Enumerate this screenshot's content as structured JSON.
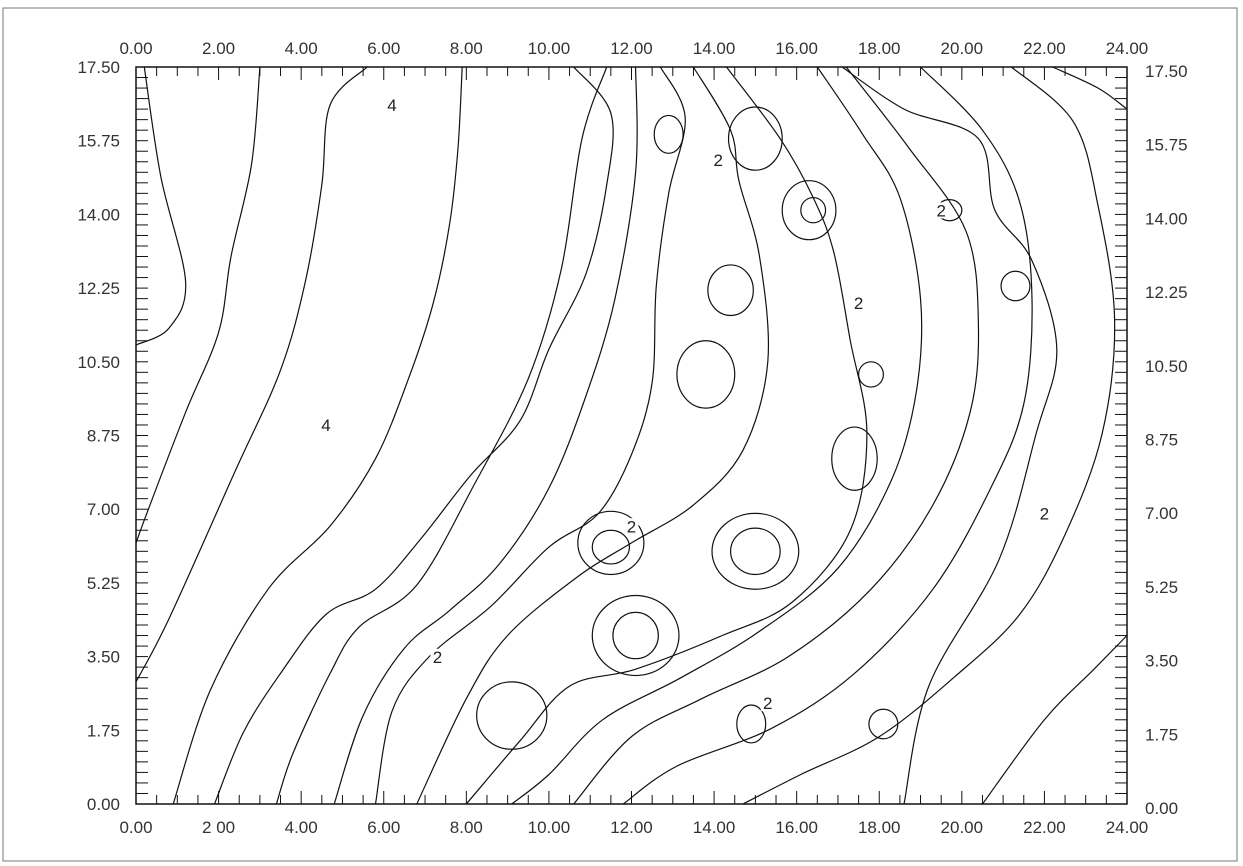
{
  "chart_data": {
    "type": "contour",
    "title": "",
    "xlabel": "",
    "ylabel": "",
    "xlim": [
      0,
      24
    ],
    "ylim": [
      0,
      17.5
    ],
    "x_ticks": [
      "0.00",
      "2.00",
      "4.00",
      "6.00",
      "8.00",
      "10.00",
      "12.00",
      "14.00",
      "16.00",
      "18.00",
      "20.00",
      "22.00",
      "24.00"
    ],
    "x_ticks_bottom": [
      "0.00",
      "2 00",
      "4.00",
      "6.00",
      "8.00",
      "10.00",
      "12.00",
      "14.00",
      "16.00",
      "18.00",
      "20.00",
      "22.00",
      "24.00"
    ],
    "y_ticks": [
      "0.00",
      "1.75",
      "3.50",
      "5.25",
      "7.00",
      "8.75",
      "10.50",
      "12.25",
      "14.00",
      "15.75",
      "17.50"
    ],
    "minor_tick_step": 0.5,
    "grid": false,
    "contour_labels": [
      {
        "text": "4",
        "x": 6.2,
        "y": 16.5
      },
      {
        "text": "4",
        "x": 4.6,
        "y": 8.9
      },
      {
        "text": "2",
        "x": 14.1,
        "y": 15.2
      },
      {
        "text": "2",
        "x": 17.5,
        "y": 11.8
      },
      {
        "text": "2",
        "x": 19.5,
        "y": 14.0
      },
      {
        "text": "2",
        "x": 12.0,
        "y": 6.5
      },
      {
        "text": "2",
        "x": 22.0,
        "y": 6.8
      },
      {
        "text": "2",
        "x": 7.3,
        "y": 3.4
      },
      {
        "text": "2",
        "x": 15.3,
        "y": 2.3
      }
    ],
    "contours": [
      {
        "name": "c1",
        "x": [
          0.2,
          0.6,
          1.2,
          0.8,
          0.0
        ],
        "y": [
          17.5,
          14.9,
          12.4,
          11.3,
          10.9
        ]
      },
      {
        "name": "c2",
        "x": [
          3.0,
          2.8,
          2.3,
          2.0,
          1.2,
          0.3,
          0.0
        ],
        "y": [
          17.5,
          15.2,
          13.0,
          11.2,
          9.3,
          7.0,
          6.2
        ]
      },
      {
        "name": "c3",
        "x": [
          5.6,
          4.7,
          4.5,
          4.1,
          3.5,
          2.4,
          0.8,
          0.0
        ],
        "y": [
          17.5,
          16.6,
          14.7,
          12.4,
          10.3,
          7.9,
          4.4,
          2.9
        ]
      },
      {
        "name": "c4",
        "x": [
          7.9,
          7.8,
          7.6,
          7.2,
          6.6,
          5.8,
          4.7,
          3.2,
          1.8,
          0.9
        ],
        "y": [
          17.5,
          15.6,
          13.8,
          11.9,
          10.1,
          8.2,
          6.6,
          5.1,
          2.7,
          0.0
        ]
      },
      {
        "name": "c5",
        "x": [
          10.6,
          11.5,
          11.4,
          10.9,
          10.0,
          9.3,
          8.1,
          6.9,
          5.8,
          4.6,
          3.5,
          2.6,
          1.9
        ],
        "y": [
          17.5,
          16.4,
          14.7,
          12.6,
          10.8,
          9.1,
          7.8,
          6.3,
          5.1,
          4.5,
          3.1,
          1.7,
          0.0
        ]
      },
      {
        "name": "c6",
        "x": [
          11.4,
          10.8,
          10.3,
          9.5,
          8.2,
          6.8,
          5.4,
          4.7,
          3.8,
          3.4
        ],
        "y": [
          17.5,
          15.8,
          12.7,
          10.1,
          7.6,
          5.2,
          4.2,
          3.1,
          1.2,
          0.0
        ]
      },
      {
        "name": "c7",
        "x": [
          12.1,
          12.1,
          11.6,
          10.9,
          10.0,
          8.8,
          7.6,
          6.5,
          5.5,
          4.8
        ],
        "y": [
          17.5,
          15.0,
          12.0,
          9.7,
          7.5,
          5.7,
          4.6,
          3.7,
          2.1,
          0.0
        ]
      },
      {
        "name": "c8",
        "x": [
          12.7,
          13.3,
          12.9,
          12.6,
          12.5,
          12.0,
          11.2,
          10.0,
          8.6,
          7.1,
          6.2,
          5.8
        ],
        "y": [
          17.5,
          16.3,
          14.5,
          12.3,
          10.0,
          8.3,
          6.9,
          6.1,
          4.7,
          3.5,
          2.2,
          0.0
        ]
      },
      {
        "name": "c9",
        "x": [
          13.5,
          14.4,
          14.6,
          15.1,
          15.3,
          14.7,
          13.5,
          12.0,
          10.7,
          9.0,
          8.0,
          6.8
        ],
        "y": [
          17.5,
          16.0,
          14.8,
          13.0,
          10.5,
          8.4,
          7.1,
          6.2,
          5.4,
          4.0,
          2.5,
          0.0
        ]
      },
      {
        "name": "c10",
        "x": [
          14.3,
          15.6,
          16.4,
          16.9,
          17.3,
          17.7,
          17.3,
          15.9,
          14.2,
          12.1,
          10.5,
          9.3,
          8.0
        ],
        "y": [
          17.5,
          15.8,
          14.4,
          13.1,
          11.0,
          8.8,
          6.5,
          4.8,
          4.0,
          3.2,
          2.8,
          1.5,
          0.0
        ]
      },
      {
        "name": "c11",
        "x": [
          16.5,
          17.6,
          18.5,
          19.0,
          18.9,
          18.3,
          17.0,
          15.1,
          13.2,
          11.3,
          10.0,
          9.1
        ],
        "y": [
          17.5,
          15.9,
          14.4,
          12.0,
          9.8,
          7.7,
          5.6,
          4.1,
          3.0,
          2.0,
          0.7,
          0.0
        ]
      },
      {
        "name": "c12",
        "x": [
          17.2,
          18.7,
          20.1,
          20.4,
          20.2,
          19.3,
          17.8,
          15.8,
          13.7,
          12.0,
          10.6
        ],
        "y": [
          17.5,
          15.6,
          13.6,
          11.4,
          9.3,
          7.1,
          5.1,
          3.5,
          2.5,
          1.6,
          0.0
        ]
      },
      {
        "name": "c13",
        "x": [
          19.0,
          20.5,
          21.4,
          21.7,
          21.5,
          20.7,
          19.3,
          17.4,
          15.4,
          13.1,
          11.8
        ],
        "y": [
          17.5,
          16.0,
          14.3,
          12.0,
          9.5,
          7.5,
          5.1,
          3.1,
          1.8,
          0.9,
          0.0
        ]
      },
      {
        "name": "c14",
        "x": [
          21.2,
          22.7,
          23.3,
          23.7,
          23.4,
          22.5,
          21.4,
          19.8,
          18.0,
          16.1,
          14.7
        ],
        "y": [
          17.5,
          16.2,
          14.2,
          11.5,
          8.8,
          6.4,
          4.5,
          3.0,
          1.6,
          0.7,
          0.0
        ]
      },
      {
        "name": "c15",
        "x": [
          17.1,
          18.6,
          20.4,
          20.8,
          21.7,
          22.3,
          21.8,
          20.9,
          19.2,
          18.6
        ],
        "y": [
          17.5,
          16.5,
          15.8,
          14.1,
          12.9,
          10.8,
          8.8,
          5.8,
          2.8,
          0.0
        ]
      },
      {
        "name": "c16",
        "x": [
          22.2,
          23.3,
          24.0
        ],
        "y": [
          17.5,
          17.0,
          16.5
        ]
      },
      {
        "name": "c17",
        "x": [
          20.5,
          22.0,
          23.2,
          24.0
        ],
        "y": [
          0.0,
          2.0,
          3.2,
          4.0
        ]
      }
    ],
    "closed_contours": [
      {
        "name": "ring1",
        "cx": 12.9,
        "cy": 15.9,
        "rx": 0.35,
        "ry": 0.45
      },
      {
        "name": "ring2",
        "cx": 15.0,
        "cy": 15.8,
        "rx": 0.65,
        "ry": 0.75
      },
      {
        "name": "ring3",
        "cx": 16.4,
        "cy": 14.1,
        "rx": 0.3,
        "ry": 0.3
      },
      {
        "name": "ring4",
        "cx": 16.3,
        "cy": 14.1,
        "rx": 0.65,
        "ry": 0.7
      },
      {
        "name": "ring5",
        "cx": 19.7,
        "cy": 14.1,
        "rx": 0.3,
        "ry": 0.25
      },
      {
        "name": "ring6",
        "cx": 14.4,
        "cy": 12.2,
        "rx": 0.55,
        "ry": 0.6
      },
      {
        "name": "ring7",
        "cx": 21.3,
        "cy": 12.3,
        "rx": 0.35,
        "ry": 0.35
      },
      {
        "name": "ring8",
        "cx": 13.8,
        "cy": 10.2,
        "rx": 0.7,
        "ry": 0.8
      },
      {
        "name": "ring9",
        "cx": 17.8,
        "cy": 10.2,
        "rx": 0.3,
        "ry": 0.3
      },
      {
        "name": "ring10",
        "cx": 17.4,
        "cy": 8.2,
        "rx": 0.55,
        "ry": 0.75
      },
      {
        "name": "ring11",
        "cx": 11.5,
        "cy": 6.1,
        "rx": 0.45,
        "ry": 0.4
      },
      {
        "name": "ring12",
        "cx": 11.5,
        "cy": 6.2,
        "rx": 0.8,
        "ry": 0.75
      },
      {
        "name": "ring13",
        "cx": 15.0,
        "cy": 6.0,
        "rx": 0.6,
        "ry": 0.55
      },
      {
        "name": "ring14",
        "cx": 15.0,
        "cy": 6.0,
        "rx": 1.05,
        "ry": 0.9
      },
      {
        "name": "ring15",
        "cx": 12.1,
        "cy": 4.0,
        "rx": 0.55,
        "ry": 0.55
      },
      {
        "name": "ring16",
        "cx": 12.1,
        "cy": 4.0,
        "rx": 1.05,
        "ry": 0.95
      },
      {
        "name": "ring17",
        "cx": 9.1,
        "cy": 2.1,
        "rx": 0.85,
        "ry": 0.8
      },
      {
        "name": "ring18",
        "cx": 14.9,
        "cy": 1.9,
        "rx": 0.35,
        "ry": 0.45
      },
      {
        "name": "ring19",
        "cx": 18.1,
        "cy": 1.9,
        "rx": 0.35,
        "ry": 0.35
      }
    ]
  }
}
